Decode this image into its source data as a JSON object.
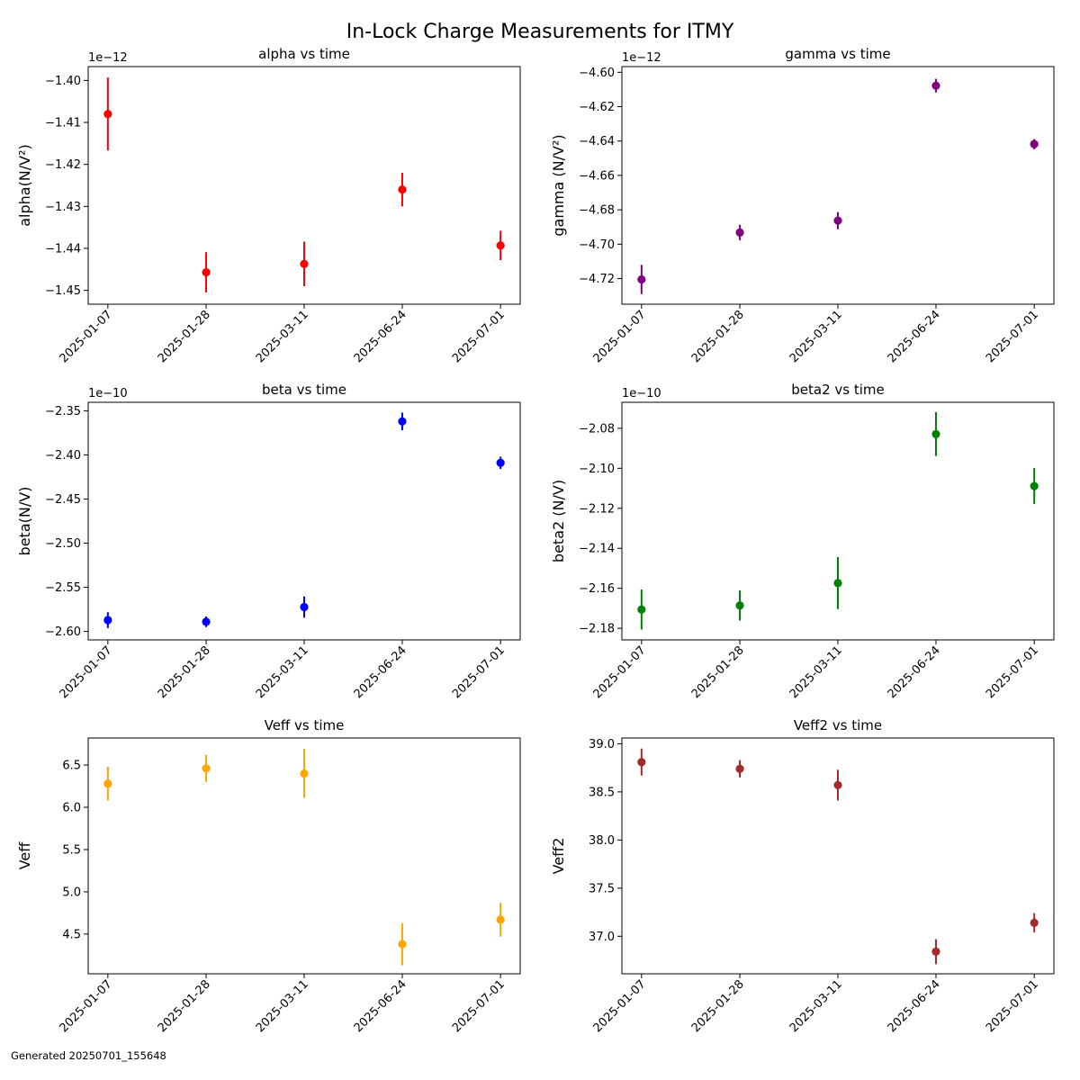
{
  "figure": {
    "title": "In-Lock Charge Measurements for ITMY",
    "footer": "Generated 20250701_155648"
  },
  "chart_data": [
    {
      "type": "scatter",
      "title": "alpha vs time",
      "ylabel": "alpha(N/V²)",
      "offset_label": "1e−12",
      "color": "#ff0000",
      "x": [
        "2025-01-07",
        "2025-01-28",
        "2025-03-11",
        "2025-06-24",
        "2025-07-01"
      ],
      "y": [
        -1.408,
        -1.4457,
        -1.4437,
        -1.426,
        -1.4393
      ],
      "yerr": [
        0.0087,
        0.0048,
        0.0053,
        0.004,
        0.0035
      ],
      "ylim": [
        -1.4533,
        -1.3967
      ],
      "yticks": [
        -1.4,
        -1.41,
        -1.42,
        -1.43,
        -1.44,
        -1.45
      ],
      "ytick_labels": [
        "−1.40",
        "−1.41",
        "−1.42",
        "−1.43",
        "−1.44",
        "−1.45"
      ]
    },
    {
      "type": "scatter",
      "title": "gamma vs time",
      "ylabel": "gamma (N/V²)",
      "offset_label": "1e−12",
      "color": "#800080",
      "x": [
        "2025-01-07",
        "2025-01-28",
        "2025-03-11",
        "2025-06-24",
        "2025-07-01"
      ],
      "y": [
        -4.7205,
        -4.6932,
        -4.6863,
        -4.6078,
        -4.6418
      ],
      "yerr": [
        0.0085,
        0.0045,
        0.005,
        0.004,
        0.003
      ],
      "ylim": [
        -4.7349,
        -4.5967
      ],
      "yticks": [
        -4.6,
        -4.62,
        -4.64,
        -4.66,
        -4.68,
        -4.7,
        -4.72
      ],
      "ytick_labels": [
        "−4.60",
        "−4.62",
        "−4.64",
        "−4.66",
        "−4.68",
        "−4.70",
        "−4.72"
      ]
    },
    {
      "type": "scatter",
      "title": "beta vs time",
      "ylabel": "beta(N/V)",
      "offset_label": "1e−10",
      "color": "#0000ff",
      "x": [
        "2025-01-07",
        "2025-01-28",
        "2025-03-11",
        "2025-06-24",
        "2025-07-01"
      ],
      "y": [
        -2.5872,
        -2.5891,
        -2.5724,
        -2.3621,
        -2.409
      ],
      "yerr": [
        0.009,
        0.006,
        0.012,
        0.01,
        0.007
      ],
      "ylim": [
        -2.6096,
        -2.3404
      ],
      "yticks": [
        -2.35,
        -2.4,
        -2.45,
        -2.5,
        -2.55,
        -2.6
      ],
      "ytick_labels": [
        "−2.35",
        "−2.40",
        "−2.45",
        "−2.50",
        "−2.55",
        "−2.60"
      ]
    },
    {
      "type": "scatter",
      "title": "beta2 vs time",
      "ylabel": "beta2 (N/V)",
      "offset_label": "1e−10",
      "color": "#008000",
      "x": [
        "2025-01-07",
        "2025-01-28",
        "2025-03-11",
        "2025-06-24",
        "2025-07-01"
      ],
      "y": [
        -2.1706,
        -2.1686,
        -2.1574,
        -2.0829,
        -2.1089
      ],
      "yerr": [
        0.01,
        0.0075,
        0.013,
        0.011,
        0.009
      ],
      "ylim": [
        -2.1858,
        -2.067
      ],
      "yticks": [
        -2.08,
        -2.1,
        -2.12,
        -2.14,
        -2.16,
        -2.18
      ],
      "ytick_labels": [
        "−2.08",
        "−2.10",
        "−2.12",
        "−2.14",
        "−2.16",
        "−2.18"
      ]
    },
    {
      "type": "scatter",
      "title": "Veff vs time",
      "ylabel": "Veff",
      "offset_label": "",
      "color": "#ffa500",
      "x": [
        "2025-01-07",
        "2025-01-28",
        "2025-03-11",
        "2025-06-24",
        "2025-07-01"
      ],
      "y": [
        6.28,
        6.46,
        6.4,
        4.38,
        4.67
      ],
      "yerr": [
        0.2,
        0.16,
        0.29,
        0.25,
        0.2
      ],
      "ylim": [
        4.03,
        6.82
      ],
      "yticks": [
        4.5,
        5.0,
        5.5,
        6.0,
        6.5
      ],
      "ytick_labels": [
        "4.5",
        "5.0",
        "5.5",
        "6.0",
        "6.5"
      ]
    },
    {
      "type": "scatter",
      "title": "Veff2 vs time",
      "ylabel": "Veff2",
      "offset_label": "",
      "color": "#a52a2a",
      "x": [
        "2025-01-07",
        "2025-01-28",
        "2025-03-11",
        "2025-06-24",
        "2025-07-01"
      ],
      "y": [
        38.81,
        38.74,
        38.57,
        36.84,
        37.14
      ],
      "yerr": [
        0.14,
        0.09,
        0.16,
        0.13,
        0.1
      ],
      "ylim": [
        36.61,
        39.06
      ],
      "yticks": [
        37.0,
        37.5,
        38.0,
        38.5,
        39.0
      ],
      "ytick_labels": [
        "37.0",
        "37.5",
        "38.0",
        "38.5",
        "39.0"
      ]
    }
  ]
}
